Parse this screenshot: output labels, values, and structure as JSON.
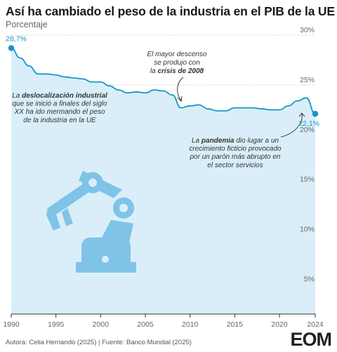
{
  "header": {
    "title": "Así ha cambiado el peso de la industria en el PIB de la UE",
    "subtitle": "Porcentaje"
  },
  "chart_data": {
    "type": "area",
    "title": "Así ha cambiado el peso de la industria en el PIB de la UE",
    "subtitle": "Porcentaje",
    "xlabel": "",
    "ylabel": "",
    "xlim": [
      1990,
      2024
    ],
    "ylim": [
      2,
      30
    ],
    "grid": true,
    "x_ticks": [
      "1990",
      "1995",
      "2000",
      "2005",
      "2010",
      "2015",
      "2020",
      "2024"
    ],
    "y_ticks": [
      {
        "value": 5,
        "label": "5%"
      },
      {
        "value": 10,
        "label": "10%"
      },
      {
        "value": 15,
        "label": "15%"
      },
      {
        "value": 20,
        "label": "20%"
      },
      {
        "value": 25,
        "label": "25%"
      },
      {
        "value": 30,
        "label": "30%"
      }
    ],
    "series": [
      {
        "color": "#1596c8",
        "fill": "#d9eef8",
        "x": [
          1990,
          1991,
          1992,
          1993,
          1994,
          1995,
          1996,
          1997,
          1998,
          1999,
          2000,
          2001,
          2002,
          2003,
          2004,
          2005,
          2006,
          2007,
          2008,
          2009,
          2010,
          2011,
          2012,
          2013,
          2014,
          2015,
          2016,
          2017,
          2018,
          2019,
          2020,
          2021,
          2022,
          2023,
          2024
        ],
        "values": [
          28.7,
          27.7,
          26.9,
          26.1,
          26.1,
          26.0,
          25.8,
          25.7,
          25.6,
          25.3,
          25.3,
          24.9,
          24.5,
          24.2,
          24.3,
          24.2,
          24.5,
          24.4,
          24.0,
          22.7,
          22.9,
          23.0,
          22.6,
          22.4,
          22.4,
          22.7,
          22.7,
          22.7,
          22.6,
          22.5,
          22.5,
          22.9,
          23.4,
          23.7,
          22.1
        ]
      }
    ],
    "start_label": "28,7%",
    "end_label": "22,1%",
    "annotations": [
      {
        "id": "crisis",
        "lines": [
          [
            {
              "t": "El mayor descenso"
            }
          ],
          [
            {
              "t": "se produjo con"
            }
          ],
          [
            {
              "t": "la "
            },
            {
              "t": "crisis de 2008",
              "bold": true
            }
          ]
        ]
      },
      {
        "id": "deslocalizacion",
        "lines": [
          [
            {
              "t": "La "
            },
            {
              "t": "deslocalización industrial",
              "bold": true
            }
          ],
          [
            {
              "t": "que se inició a finales del siglo"
            }
          ],
          [
            {
              "t": "XX ha ido mermando el peso"
            }
          ],
          [
            {
              "t": "de la industria en la UE"
            }
          ]
        ]
      },
      {
        "id": "pandemia",
        "lines": [
          [
            {
              "t": "La "
            },
            {
              "t": "pandemia",
              "bold": true
            },
            {
              "t": " dio lugar a un"
            }
          ],
          [
            {
              "t": "crecimiento ficticio provocado"
            }
          ],
          [
            {
              "t": "por un parón más abrupto en"
            }
          ],
          [
            {
              "t": "el sector servicios"
            }
          ]
        ]
      }
    ]
  },
  "footer": {
    "source": "Autora: Celia Hernando (2025) | Fuente: Banco Mundial (2025)",
    "brand": "EOM"
  },
  "illustration": {
    "name": "robot-arm-icon",
    "color": "#7fc3e8"
  }
}
